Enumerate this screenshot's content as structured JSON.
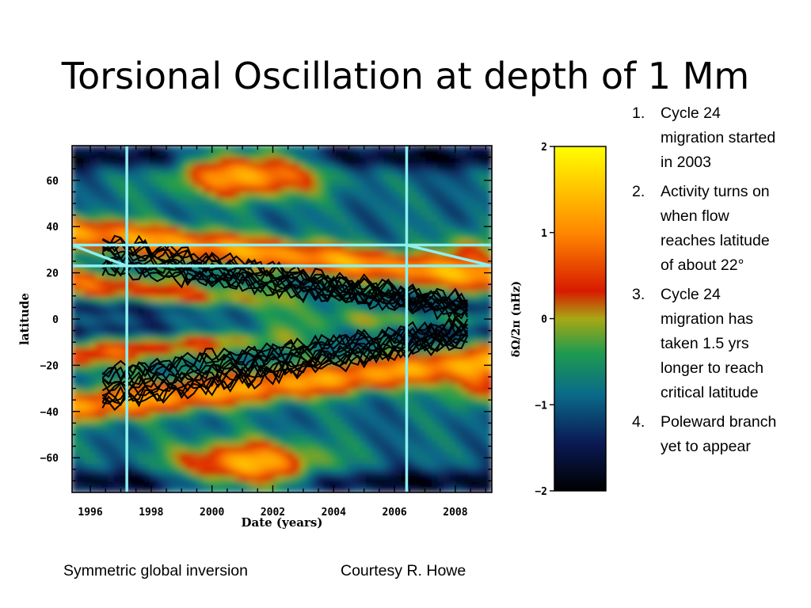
{
  "title": "Torsional Oscillation at depth of 1 Mm",
  "notes": [
    {
      "number": "1.",
      "text": "Cycle 24 migration started in 2003"
    },
    {
      "number": "2.",
      "text": "Activity turns on when flow reaches latitude of about 22°"
    },
    {
      "number": "3.",
      "text": "Cycle 24 migration has taken 1.5 yrs longer to reach critical latitude"
    },
    {
      "number": "4.",
      "text": "Poleward branch yet to appear"
    }
  ],
  "captions": {
    "left": "Symmetric global inversion",
    "right": "Courtesy R. Howe"
  },
  "colors": {
    "marker_lines": "#8ff0f0",
    "contours": "#000000",
    "frame": "#000000"
  },
  "chart_data": {
    "type": "heatmap",
    "xlabel": "Date (years)",
    "ylabel": "latitude",
    "xlim": [
      1995.4,
      2009.2
    ],
    "ylim": [
      -75,
      75
    ],
    "x_ticks": [
      1996,
      1998,
      2000,
      2002,
      2004,
      2006,
      2008
    ],
    "x_tick_labels": [
      "1996",
      "1998",
      "2000",
      "2002",
      "2004",
      "2006",
      "2008"
    ],
    "y_ticks": [
      60,
      40,
      20,
      0,
      -20,
      -40,
      -60
    ],
    "y_tick_labels": [
      "60",
      "40",
      "20",
      "0",
      "−20",
      "−40",
      "−60"
    ],
    "vertical_markers": [
      1997.2,
      2006.4
    ],
    "horizontal_markers": [
      32,
      23
    ],
    "diagonal_markers": [
      {
        "x": [
          1995.4,
          1997.2
        ],
        "y": [
          32,
          23
        ]
      },
      {
        "x": [
          2006.4,
          2009.2
        ],
        "y": [
          32,
          23
        ]
      }
    ],
    "colorbar": {
      "label": "δΩ/2π  (nHz)",
      "range": [
        -2,
        2
      ],
      "ticks": [
        2,
        1,
        0,
        -1,
        -2
      ],
      "tick_labels": [
        "2",
        "1",
        "0",
        "−1",
        "−2"
      ],
      "colormap": [
        "#000000",
        "#0a1a55",
        "#0a6a8a",
        "#1e9b4f",
        "#a8a814",
        "#d81a00",
        "#ff8800",
        "#ffff00"
      ]
    },
    "bands": [
      {
        "sign": "fast",
        "centre_start_lat": 52,
        "centre_end_lat": 18,
        "x_start": 1995.4,
        "x_end": 2009.2
      },
      {
        "sign": "fast",
        "centre_start_lat": -52,
        "centre_end_lat": -18,
        "x_start": 1995.4,
        "x_end": 2009.2
      },
      {
        "sign": "fast",
        "centre_start_lat": 62,
        "centre_end_lat": 62,
        "x_start": 1998.5,
        "x_end": 2003.5
      },
      {
        "sign": "fast",
        "centre_start_lat": -62,
        "centre_end_lat": -62,
        "x_start": 1998.5,
        "x_end": 2003.5
      }
    ]
  }
}
